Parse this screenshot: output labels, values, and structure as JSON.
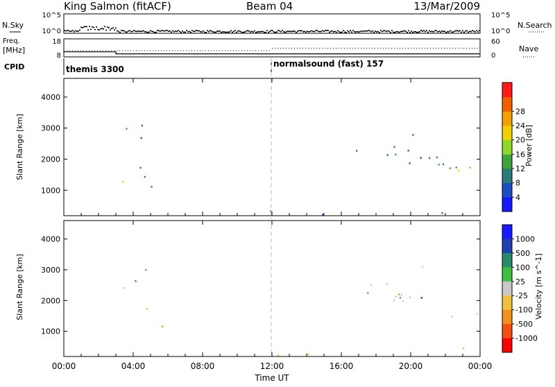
{
  "header": {
    "station": "King Salmon (fitACF)",
    "beam": "Beam 04",
    "date": "13/Mar/2009"
  },
  "summary_panels": {
    "nsky_label": "N.Sky",
    "nsky_ticks": [
      "10^5",
      "10^0"
    ],
    "nsearch_label": "N.Search",
    "nsearch_ticks": [
      "10^5",
      "10^0"
    ],
    "freq_label_1": "Freq.",
    "freq_label_2": "[MHz]",
    "freq_ticks": [
      "18",
      "8"
    ],
    "nave_label": "Nave",
    "nave_ticks": [
      "60",
      "0"
    ],
    "cpid_label": "CPID",
    "cpid_entries": [
      {
        "name": "themis 3300",
        "start_hour": 0
      },
      {
        "name": "normalsound (fast) 157",
        "start_hour": 12
      }
    ],
    "freq_trace": [
      {
        "x": 0,
        "y": 10.8
      },
      {
        "x": 3.0,
        "y": 10.8
      },
      {
        "x": 3.0,
        "y": 9.7
      },
      {
        "x": 24,
        "y": 9.7
      }
    ],
    "nave_level": 22,
    "nave_level_late": 30
  },
  "chart_data": [
    {
      "type": "heatmap",
      "title": "Power",
      "xlabel": "",
      "ylabel": "Slant Range [km]",
      "xlim": [
        0,
        24
      ],
      "ylim": [
        180,
        4600
      ],
      "ytick_labels": [
        "1000",
        "2000",
        "3000",
        "4000"
      ],
      "yticks": [
        1000,
        2000,
        3000,
        4000
      ],
      "colorbar_label": "Power [dB]",
      "colorbar_ticks": [
        "4",
        "8",
        "12",
        "16",
        "20",
        "24",
        "28"
      ],
      "colorbar_values": [
        4,
        8,
        12,
        16,
        20,
        24,
        28
      ],
      "colorbar_colors": [
        "#1616ff",
        "#1f4cc0",
        "#2c7a7a",
        "#3fa13f",
        "#8ed62a",
        "#f0d000",
        "#f0a000",
        "#f06000",
        "#ff1a1a"
      ],
      "vmin": 0,
      "vmax": 30,
      "regions": [
        {
          "t0": 3.2,
          "t1": 5.0,
          "r0": 900,
          "r1": 3500,
          "density": 0.55,
          "value": 8
        },
        {
          "t0": 3.2,
          "t1": 4.6,
          "r0": 1100,
          "r1": 1400,
          "density": 0.9,
          "value": 17
        },
        {
          "t0": 3.4,
          "t1": 4.2,
          "r0": 2500,
          "r1": 2800,
          "density": 0.6,
          "value": 12
        },
        {
          "t0": 4.6,
          "t1": 6.1,
          "r0": 900,
          "r1": 1400,
          "density": 0.35,
          "value": 6
        },
        {
          "t0": 7.3,
          "t1": 8.4,
          "r0": 600,
          "r1": 1000,
          "density": 0.45,
          "value": 7
        },
        {
          "t0": 10.8,
          "t1": 12.6,
          "r0": 2700,
          "r1": 3000,
          "density": 0.35,
          "value": 5
        },
        {
          "t0": 16.8,
          "t1": 24.0,
          "r0": 1100,
          "r1": 2500,
          "density": 0.6,
          "value": 8,
          "slope": true
        },
        {
          "t0": 21.0,
          "t1": 24.0,
          "r0": 1400,
          "r1": 1700,
          "density": 0.8,
          "value": 15
        },
        {
          "t0": 18.5,
          "t1": 20.8,
          "r0": 2700,
          "r1": 3300,
          "density": 0.25,
          "value": 5
        },
        {
          "t0": 8.0,
          "t1": 24.0,
          "r0": 180,
          "r1": 420,
          "density": 0.35,
          "value": 6
        }
      ]
    },
    {
      "type": "heatmap",
      "title": "Velocity",
      "xlabel": "Time UT",
      "ylabel": "Slant Range [km]",
      "xlim": [
        0,
        24
      ],
      "ylim": [
        180,
        4600
      ],
      "xtick_labels": [
        "00:00",
        "04:00",
        "08:00",
        "12:00",
        "16:00",
        "20:00",
        "00:00"
      ],
      "xticks": [
        0,
        4,
        8,
        12,
        16,
        20,
        24
      ],
      "ytick_labels": [
        "1000",
        "2000",
        "3000",
        "4000"
      ],
      "yticks": [
        1000,
        2000,
        3000,
        4000
      ],
      "colorbar_label": "Velocity [m s^-1]",
      "colorbar_ticks": [
        "1000",
        "500",
        "100",
        "25",
        "-25",
        "-100",
        "-500",
        "-1000"
      ],
      "colorbar_values": [
        1000,
        500,
        100,
        25,
        -25,
        -100,
        -500,
        -1000
      ],
      "colorbar_colors": [
        "#1a1aff",
        "#2040b0",
        "#2a8a6a",
        "#40c040",
        "#c8c8c8",
        "#f0c040",
        "#f09020",
        "#f05010",
        "#ff0000"
      ],
      "regions": [
        {
          "t0": 3.2,
          "t1": 5.0,
          "r0": 900,
          "r1": 3500,
          "density": 0.55,
          "value": 0
        },
        {
          "t0": 5.2,
          "t1": 6.2,
          "r0": 950,
          "r1": 1500,
          "density": 0.6,
          "value": -400
        },
        {
          "t0": 7.4,
          "t1": 8.3,
          "r0": 600,
          "r1": 950,
          "density": 0.7,
          "value": -400
        },
        {
          "t0": 10.9,
          "t1": 11.4,
          "r0": 700,
          "r1": 850,
          "density": 0.8,
          "value": 150
        },
        {
          "t0": 10.8,
          "t1": 12.6,
          "r0": 2700,
          "r1": 3000,
          "density": 0.35,
          "value": 0
        },
        {
          "t0": 16.8,
          "t1": 24.0,
          "r0": 1100,
          "r1": 2500,
          "density": 0.6,
          "value": 0,
          "slope": true
        },
        {
          "t0": 18.5,
          "t1": 20.8,
          "r0": 2700,
          "r1": 3300,
          "density": 0.25,
          "value": 0
        },
        {
          "t0": 8.0,
          "t1": 24.0,
          "r0": 180,
          "r1": 420,
          "density": 0.35,
          "value": -60
        }
      ]
    }
  ]
}
